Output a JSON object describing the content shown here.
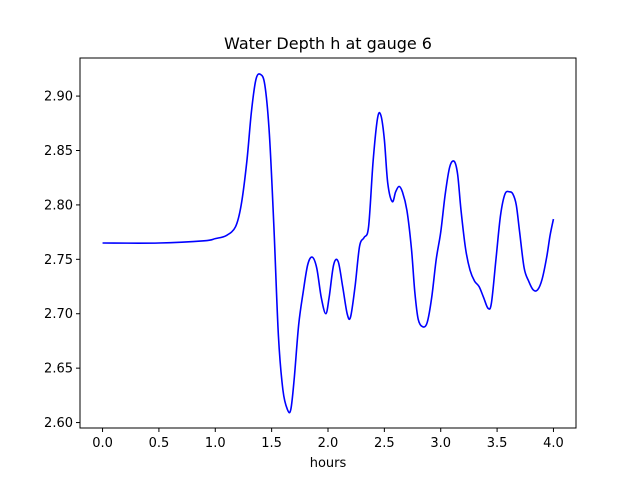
{
  "chart_data": {
    "type": "line",
    "title": "Water Depth h at gauge 6",
    "xlabel": "hours",
    "ylabel": "",
    "xlim": [
      -0.2,
      4.2
    ],
    "ylim": [
      2.595,
      2.935
    ],
    "xticks": [
      0.0,
      0.5,
      1.0,
      1.5,
      2.0,
      2.5,
      3.0,
      3.5,
      4.0
    ],
    "xtick_labels": [
      "0.0",
      "0.5",
      "1.0",
      "1.5",
      "2.0",
      "2.5",
      "3.0",
      "3.5",
      "4.0"
    ],
    "yticks": [
      2.6,
      2.65,
      2.7,
      2.75,
      2.8,
      2.85,
      2.9
    ],
    "ytick_labels": [
      "2.60",
      "2.65",
      "2.70",
      "2.75",
      "2.80",
      "2.85",
      "2.90"
    ],
    "grid": false,
    "series": [
      {
        "color": "#0000ff",
        "x": [
          0.0,
          0.5,
          0.9,
          1.0,
          1.1,
          1.18,
          1.23,
          1.28,
          1.32,
          1.36,
          1.4,
          1.44,
          1.48,
          1.52,
          1.56,
          1.6,
          1.64,
          1.67,
          1.7,
          1.74,
          1.78,
          1.82,
          1.86,
          1.9,
          1.94,
          1.98,
          2.01,
          2.05,
          2.09,
          2.13,
          2.17,
          2.2,
          2.24,
          2.28,
          2.32,
          2.36,
          2.4,
          2.44,
          2.47,
          2.5,
          2.53,
          2.57,
          2.6,
          2.63,
          2.66,
          2.7,
          2.74,
          2.77,
          2.8,
          2.84,
          2.88,
          2.92,
          2.96,
          3.0,
          3.04,
          3.08,
          3.12,
          3.15,
          3.18,
          3.22,
          3.26,
          3.3,
          3.34,
          3.38,
          3.42,
          3.45,
          3.49,
          3.53,
          3.57,
          3.61,
          3.64,
          3.67,
          3.7,
          3.74,
          3.78,
          3.82,
          3.86,
          3.9,
          3.94,
          3.97,
          4.0
        ],
        "values": [
          2.765,
          2.765,
          2.767,
          2.769,
          2.772,
          2.78,
          2.8,
          2.84,
          2.885,
          2.915,
          2.92,
          2.91,
          2.865,
          2.78,
          2.68,
          2.63,
          2.612,
          2.612,
          2.64,
          2.69,
          2.72,
          2.745,
          2.752,
          2.742,
          2.715,
          2.7,
          2.715,
          2.745,
          2.748,
          2.725,
          2.7,
          2.697,
          2.725,
          2.762,
          2.77,
          2.78,
          2.84,
          2.88,
          2.882,
          2.86,
          2.82,
          2.803,
          2.812,
          2.817,
          2.812,
          2.795,
          2.76,
          2.72,
          2.695,
          2.688,
          2.692,
          2.715,
          2.75,
          2.775,
          2.81,
          2.835,
          2.84,
          2.828,
          2.795,
          2.76,
          2.74,
          2.73,
          2.725,
          2.715,
          2.705,
          2.71,
          2.75,
          2.79,
          2.81,
          2.812,
          2.81,
          2.8,
          2.775,
          2.742,
          2.73,
          2.722,
          2.722,
          2.732,
          2.752,
          2.772,
          2.787
        ]
      }
    ]
  }
}
